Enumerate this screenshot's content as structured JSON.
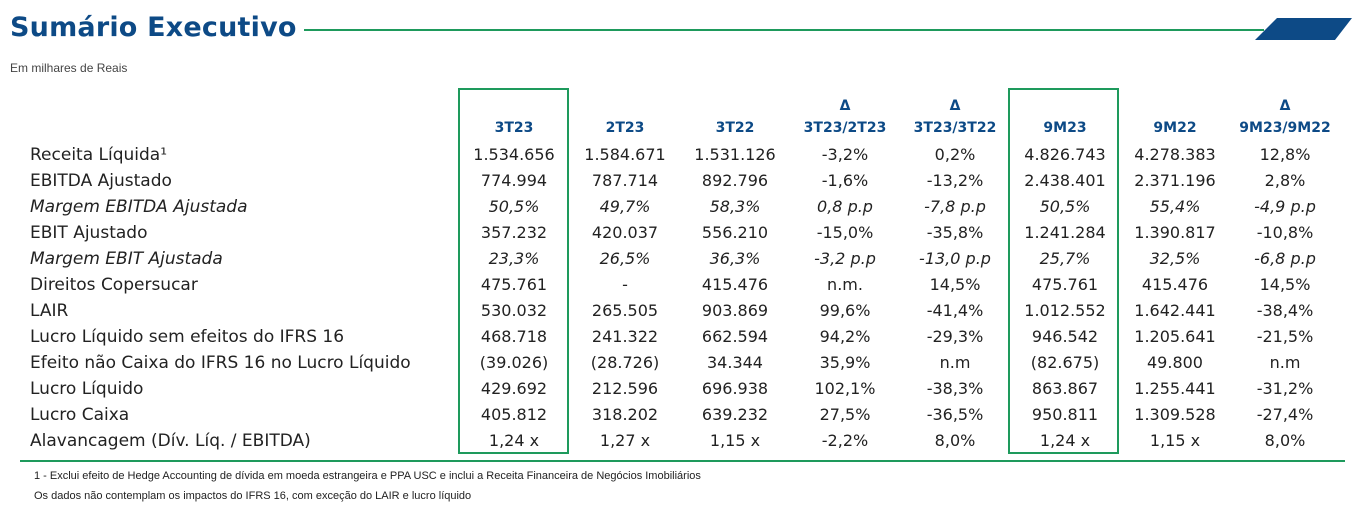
{
  "header": {
    "title": "Sumário Executivo",
    "subtitle": "Em milhares de Reais"
  },
  "colors": {
    "title": "#0d4a86",
    "accent_green": "#1e9a5c",
    "accent_blue": "#0d4a86"
  },
  "table": {
    "columns": [
      {
        "lines": [
          "3T23"
        ]
      },
      {
        "lines": [
          "2T23"
        ]
      },
      {
        "lines": [
          "3T22"
        ]
      },
      {
        "lines": [
          "Δ",
          "3T23/2T23"
        ]
      },
      {
        "lines": [
          "Δ",
          "3T23/3T22"
        ]
      },
      {
        "lines": [
          "9M23"
        ]
      },
      {
        "lines": [
          "9M22"
        ]
      },
      {
        "lines": [
          "Δ",
          "9M23/9M22"
        ]
      }
    ],
    "highlighted_columns": [
      "3T23",
      "9M23"
    ],
    "rows": [
      {
        "label": "Receita Líquida¹",
        "italic": false,
        "values": [
          "1.534.656",
          "1.584.671",
          "1.531.126",
          "-3,2%",
          "0,2%",
          "4.826.743",
          "4.278.383",
          "12,8%"
        ]
      },
      {
        "label": "EBITDA Ajustado",
        "italic": false,
        "values": [
          "774.994",
          "787.714",
          "892.796",
          "-1,6%",
          "-13,2%",
          "2.438.401",
          "2.371.196",
          "2,8%"
        ]
      },
      {
        "label": "Margem EBITDA Ajustada",
        "italic": true,
        "values": [
          "50,5%",
          "49,7%",
          "58,3%",
          "0,8 p.p",
          "-7,8 p.p",
          "50,5%",
          "55,4%",
          "-4,9 p.p"
        ]
      },
      {
        "label": "EBIT Ajustado",
        "italic": false,
        "values": [
          "357.232",
          "420.037",
          "556.210",
          "-15,0%",
          "-35,8%",
          "1.241.284",
          "1.390.817",
          "-10,8%"
        ]
      },
      {
        "label": "Margem EBIT Ajustada",
        "italic": true,
        "values": [
          "23,3%",
          "26,5%",
          "36,3%",
          "-3,2 p.p",
          "-13,0 p.p",
          "25,7%",
          "32,5%",
          "-6,8 p.p"
        ]
      },
      {
        "label": "Direitos Copersucar",
        "italic": false,
        "values": [
          "475.761",
          "-",
          "415.476",
          "n.m.",
          "14,5%",
          "475.761",
          "415.476",
          "14,5%"
        ]
      },
      {
        "label": "LAIR",
        "italic": false,
        "values": [
          "530.032",
          "265.505",
          "903.869",
          "99,6%",
          "-41,4%",
          "1.012.552",
          "1.642.441",
          "-38,4%"
        ]
      },
      {
        "label": "Lucro Líquido sem efeitos do IFRS 16",
        "italic": false,
        "values": [
          "468.718",
          "241.322",
          "662.594",
          "94,2%",
          "-29,3%",
          "946.542",
          "1.205.641",
          "-21,5%"
        ]
      },
      {
        "label": "Efeito não Caixa do IFRS 16 no Lucro Líquido",
        "italic": false,
        "values": [
          "(39.026)",
          "(28.726)",
          "34.344",
          "35,9%",
          "n.m",
          "(82.675)",
          "49.800",
          "n.m"
        ]
      },
      {
        "label": "Lucro Líquido",
        "italic": false,
        "values": [
          "429.692",
          "212.596",
          "696.938",
          "102,1%",
          "-38,3%",
          "863.867",
          "1.255.441",
          "-31,2%"
        ]
      },
      {
        "label": "Lucro Caixa",
        "italic": false,
        "values": [
          "405.812",
          "318.202",
          "639.232",
          "27,5%",
          "-36,5%",
          "950.811",
          "1.309.528",
          "-27,4%"
        ]
      },
      {
        "label": "Alavancagem (Dív. Líq. / EBITDA)",
        "italic": false,
        "values": [
          "1,24 x",
          "1,27 x",
          "1,15 x",
          "-2,2%",
          "8,0%",
          "1,24 x",
          "1,15 x",
          "8,0%"
        ]
      }
    ]
  },
  "footnotes": [
    "1 - Exclui efeito de Hedge Accounting de dívida em moeda estrangeira e PPA USC e inclui a Receita Financeira de Negócios Imobiliários",
    "Os dados não contemplam os impactos do IFRS 16, com exceção do LAIR e lucro líquido"
  ]
}
